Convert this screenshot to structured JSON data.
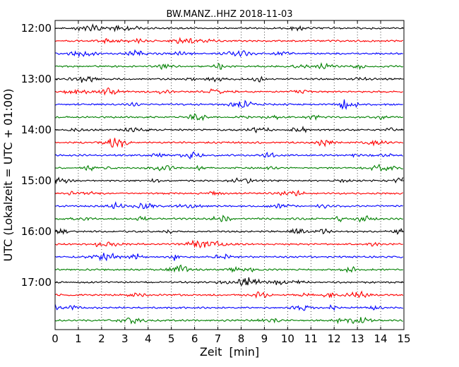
{
  "chart_data": {
    "type": "line",
    "title": "BW.MANZ..HHZ 2018-11-03",
    "xlabel": "Zeit  [min]",
    "ylabel": "UTC (Lokalzeit = UTC + 01:00)",
    "xlim": [
      0,
      15
    ],
    "x_ticks": [
      "0",
      "1",
      "2",
      "3",
      "4",
      "5",
      "6",
      "7",
      "8",
      "9",
      "10",
      "11",
      "12",
      "13",
      "14",
      "15"
    ],
    "y_ticks": [
      "12:00",
      "13:00",
      "14:00",
      "15:00",
      "16:00",
      "17:00"
    ],
    "grid": "vertical dotted at each minute",
    "trace_interval_minutes": 15,
    "color_cycle": [
      "#000000",
      "#ff0000",
      "#0000ff",
      "#008000"
    ],
    "traces": [
      {
        "start": "12:00",
        "color": "#000000"
      },
      {
        "start": "12:15",
        "color": "#ff0000"
      },
      {
        "start": "12:30",
        "color": "#0000ff"
      },
      {
        "start": "12:45",
        "color": "#008000"
      },
      {
        "start": "13:00",
        "color": "#000000"
      },
      {
        "start": "13:15",
        "color": "#ff0000"
      },
      {
        "start": "13:30",
        "color": "#0000ff"
      },
      {
        "start": "13:45",
        "color": "#008000"
      },
      {
        "start": "14:00",
        "color": "#000000"
      },
      {
        "start": "14:15",
        "color": "#ff0000"
      },
      {
        "start": "14:30",
        "color": "#0000ff"
      },
      {
        "start": "14:45",
        "color": "#008000"
      },
      {
        "start": "15:00",
        "color": "#000000"
      },
      {
        "start": "15:15",
        "color": "#ff0000"
      },
      {
        "start": "15:30",
        "color": "#0000ff"
      },
      {
        "start": "15:45",
        "color": "#008000"
      },
      {
        "start": "16:00",
        "color": "#000000"
      },
      {
        "start": "16:15",
        "color": "#ff0000"
      },
      {
        "start": "16:30",
        "color": "#0000ff"
      },
      {
        "start": "16:45",
        "color": "#008000"
      },
      {
        "start": "17:00",
        "color": "#000000"
      },
      {
        "start": "17:15",
        "color": "#ff0000"
      },
      {
        "start": "17:30",
        "color": "#0000ff"
      },
      {
        "start": "17:45",
        "color": "#008000"
      }
    ]
  }
}
